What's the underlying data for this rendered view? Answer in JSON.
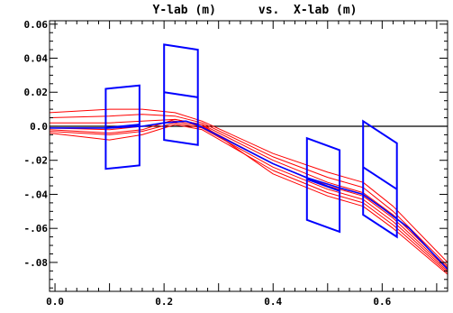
{
  "chart_data": {
    "type": "line",
    "title": "Y-lab (m)      vs.  X-lab (m)",
    "xlim": [
      -0.01,
      0.72
    ],
    "ylim": [
      -0.097,
      0.062
    ],
    "xticks": [
      {
        "value": 0.0,
        "label": "0.0"
      },
      {
        "value": 0.2,
        "label": "0.2"
      },
      {
        "value": 0.4,
        "label": "0.4"
      },
      {
        "value": 0.6,
        "label": "0.6"
      }
    ],
    "yticks": [
      {
        "value": 0.06,
        "label": "0.06"
      },
      {
        "value": 0.04,
        "label": "0.04"
      },
      {
        "value": 0.02,
        "label": "0.02"
      },
      {
        "value": 0.0,
        "label": "0.0"
      },
      {
        "value": -0.02,
        "label": "-.02"
      },
      {
        "value": -0.04,
        "label": "-.04"
      },
      {
        "value": -0.06,
        "label": "-.06"
      },
      {
        "value": -0.08,
        "label": "-.08"
      }
    ],
    "zero_line": true,
    "colors": {
      "trajectories": "#ff0000",
      "elements": "#0000ff",
      "axes": "#000000"
    },
    "elements": [
      {
        "outline": [
          [
            0.093,
            0.022
          ],
          [
            0.155,
            0.024
          ],
          [
            0.155,
            -0.023
          ],
          [
            0.093,
            -0.025
          ]
        ],
        "mid": [
          [
            0.093,
            -0.001
          ],
          [
            0.155,
            0.001
          ]
        ]
      },
      {
        "outline": [
          [
            0.2,
            0.048
          ],
          [
            0.262,
            0.045
          ],
          [
            0.262,
            -0.011
          ],
          [
            0.2,
            -0.008
          ]
        ],
        "mid": [
          [
            0.2,
            0.02
          ],
          [
            0.262,
            0.017
          ]
        ]
      },
      {
        "outline": [
          [
            0.462,
            -0.007
          ],
          [
            0.522,
            -0.014
          ],
          [
            0.522,
            -0.062
          ],
          [
            0.462,
            -0.055
          ]
        ],
        "mid": [
          [
            0.462,
            -0.031
          ],
          [
            0.522,
            -0.038
          ]
        ]
      },
      {
        "outline": [
          [
            0.565,
            0.003
          ],
          [
            0.627,
            -0.01
          ],
          [
            0.627,
            -0.065
          ],
          [
            0.565,
            -0.052
          ]
        ],
        "mid": [
          [
            0.565,
            -0.024
          ],
          [
            0.627,
            -0.037
          ]
        ]
      }
    ],
    "central_trajectory": {
      "points": [
        [
          -0.01,
          -0.001
        ],
        [
          0.1,
          -0.001
        ],
        [
          0.16,
          0.0
        ],
        [
          0.2,
          0.002
        ],
        [
          0.24,
          0.003
        ],
        [
          0.26,
          0.001
        ],
        [
          0.4,
          -0.022
        ],
        [
          0.46,
          -0.03
        ],
        [
          0.52,
          -0.036
        ],
        [
          0.565,
          -0.04
        ],
        [
          0.6,
          -0.048
        ],
        [
          0.65,
          -0.06
        ],
        [
          0.72,
          -0.084
        ]
      ]
    },
    "series": [
      {
        "points": [
          [
            -0.01,
            0.008
          ],
          [
            0.1,
            0.01
          ],
          [
            0.16,
            0.01
          ],
          [
            0.22,
            0.008
          ],
          [
            0.27,
            0.003
          ],
          [
            0.4,
            -0.016
          ],
          [
            0.5,
            -0.027
          ],
          [
            0.565,
            -0.033
          ],
          [
            0.62,
            -0.047
          ],
          [
            0.72,
            -0.08
          ]
        ]
      },
      {
        "points": [
          [
            -0.01,
            0.005
          ],
          [
            0.1,
            0.006
          ],
          [
            0.16,
            0.007
          ],
          [
            0.22,
            0.006
          ],
          [
            0.27,
            0.002
          ],
          [
            0.4,
            -0.018
          ],
          [
            0.5,
            -0.03
          ],
          [
            0.565,
            -0.036
          ],
          [
            0.62,
            -0.05
          ],
          [
            0.72,
            -0.082
          ]
        ]
      },
      {
        "points": [
          [
            -0.01,
            0.002
          ],
          [
            0.1,
            0.002
          ],
          [
            0.16,
            0.003
          ],
          [
            0.22,
            0.004
          ],
          [
            0.27,
            0.001
          ],
          [
            0.4,
            -0.02
          ],
          [
            0.5,
            -0.033
          ],
          [
            0.565,
            -0.039
          ],
          [
            0.62,
            -0.052
          ],
          [
            0.72,
            -0.083
          ]
        ]
      },
      {
        "points": [
          [
            -0.01,
            -0.001
          ],
          [
            0.1,
            -0.002
          ],
          [
            0.16,
            0.0
          ],
          [
            0.22,
            0.003
          ],
          [
            0.27,
            0.0
          ],
          [
            0.4,
            -0.022
          ],
          [
            0.5,
            -0.035
          ],
          [
            0.565,
            -0.041
          ],
          [
            0.62,
            -0.054
          ],
          [
            0.72,
            -0.084
          ]
        ]
      },
      {
        "points": [
          [
            -0.01,
            -0.003
          ],
          [
            0.1,
            -0.005
          ],
          [
            0.16,
            -0.003
          ],
          [
            0.22,
            0.002
          ],
          [
            0.27,
            -0.001
          ],
          [
            0.4,
            -0.024
          ],
          [
            0.5,
            -0.037
          ],
          [
            0.565,
            -0.043
          ],
          [
            0.62,
            -0.056
          ],
          [
            0.72,
            -0.085
          ]
        ]
      },
      {
        "points": [
          [
            -0.01,
            -0.004
          ],
          [
            0.1,
            -0.008
          ],
          [
            0.16,
            -0.005
          ],
          [
            0.22,
            0.001
          ],
          [
            0.27,
            -0.002
          ],
          [
            0.4,
            -0.026
          ],
          [
            0.5,
            -0.039
          ],
          [
            0.565,
            -0.045
          ],
          [
            0.62,
            -0.058
          ],
          [
            0.72,
            -0.086
          ]
        ]
      },
      {
        "points": [
          [
            -0.01,
            -0.002
          ],
          [
            0.1,
            -0.004
          ],
          [
            0.16,
            -0.002
          ],
          [
            0.22,
            0.004
          ],
          [
            0.27,
            0.001
          ],
          [
            0.4,
            -0.028
          ],
          [
            0.5,
            -0.041
          ],
          [
            0.565,
            -0.047
          ],
          [
            0.62,
            -0.06
          ],
          [
            0.72,
            -0.087
          ]
        ]
      }
    ]
  }
}
